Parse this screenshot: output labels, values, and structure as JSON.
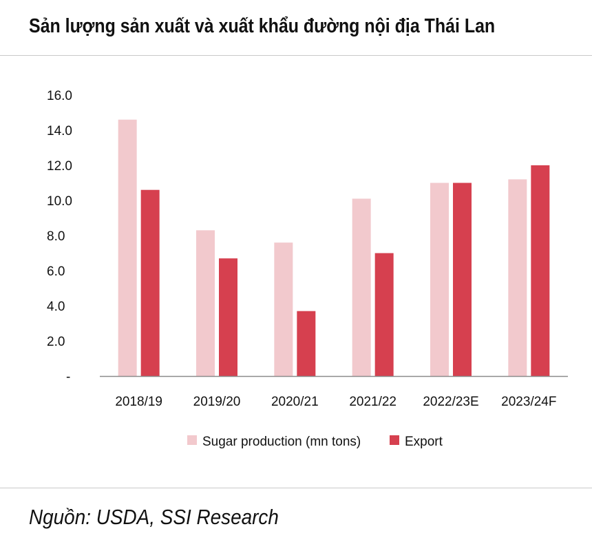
{
  "title": "Sản lượng sản xuất và xuất khẩu đường nội địa Thái Lan",
  "source": "Nguồn: USDA, SSI Research",
  "colors": {
    "production": "#f2c9cd",
    "export": "#d6404f",
    "axis": "#8a8a8a",
    "rule": "#c8c8c8"
  },
  "chart_data": {
    "type": "bar",
    "title": "Sản lượng sản xuất và xuất khẩu đường nội địa Thái Lan",
    "xlabel": "",
    "ylabel": "",
    "ylim": [
      0,
      16
    ],
    "yticks": [
      0,
      2,
      4,
      6,
      8,
      10,
      12,
      14,
      16
    ],
    "ytick_labels": [
      "-",
      "2.0",
      "4.0",
      "6.0",
      "8.0",
      "10.0",
      "12.0",
      "14.0",
      "16.0"
    ],
    "categories": [
      "2018/19",
      "2019/20",
      "2020/21",
      "2021/22",
      "2022/23E",
      "2023/24F"
    ],
    "series": [
      {
        "name": "Sugar production (mn tons)",
        "values": [
          14.6,
          8.3,
          7.6,
          10.1,
          11.0,
          11.2
        ]
      },
      {
        "name": "Export",
        "values": [
          10.6,
          6.7,
          3.7,
          7.0,
          11.0,
          12.0
        ]
      }
    ],
    "legend": "bottom",
    "grid": false
  }
}
